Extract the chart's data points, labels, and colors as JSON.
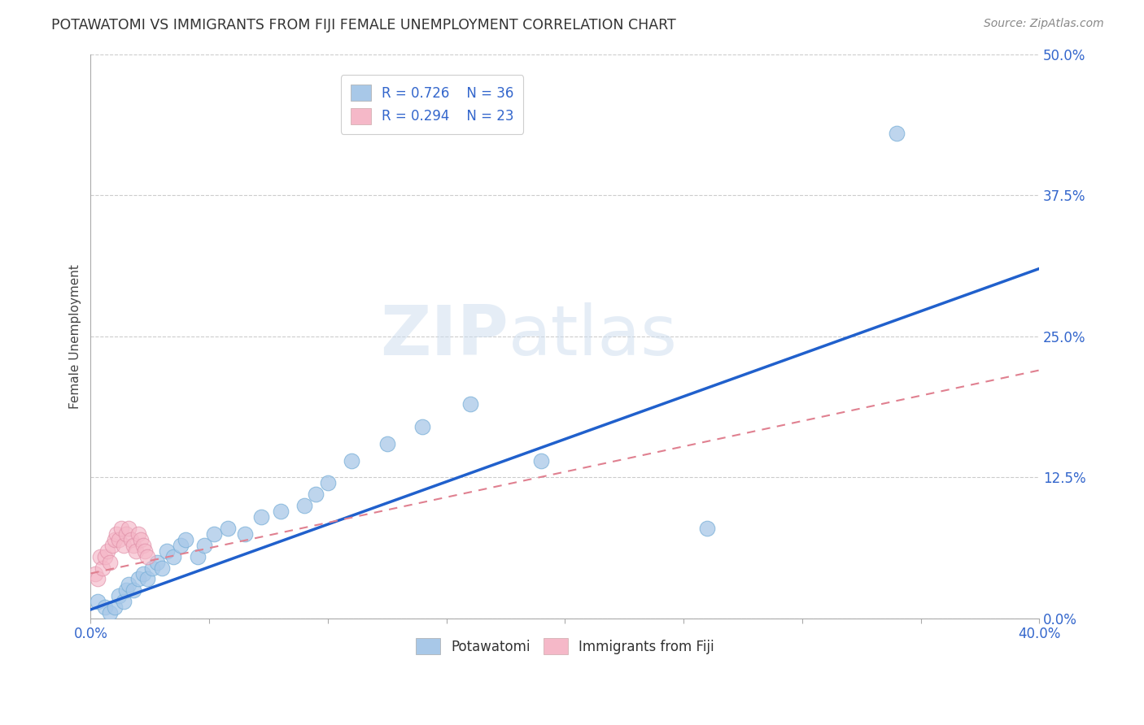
{
  "title": "POTAWATOMI VS IMMIGRANTS FROM FIJI FEMALE UNEMPLOYMENT CORRELATION CHART",
  "source": "Source: ZipAtlas.com",
  "ylabel": "Female Unemployment",
  "xlim": [
    0.0,
    0.4
  ],
  "ylim": [
    0.0,
    0.5
  ],
  "ytick_vals": [
    0.0,
    0.125,
    0.25,
    0.375,
    0.5
  ],
  "xtick_vals": [
    0.0,
    0.05,
    0.1,
    0.15,
    0.2,
    0.25,
    0.3,
    0.35,
    0.4
  ],
  "legend_r1": "0.726",
  "legend_n1": "36",
  "legend_r2": "0.294",
  "legend_n2": "23",
  "blue_color": "#a8c8e8",
  "pink_color": "#f5b8c8",
  "line_blue": "#2060cc",
  "line_pink": "#e08090",
  "text_blue": "#3366cc",
  "watermark_zip": "ZIP",
  "watermark_atlas": "atlas",
  "blue_x": [
    0.003,
    0.006,
    0.008,
    0.01,
    0.012,
    0.014,
    0.015,
    0.016,
    0.018,
    0.02,
    0.022,
    0.024,
    0.026,
    0.028,
    0.03,
    0.032,
    0.035,
    0.038,
    0.04,
    0.045,
    0.048,
    0.052,
    0.058,
    0.065,
    0.072,
    0.08,
    0.09,
    0.095,
    0.1,
    0.11,
    0.125,
    0.14,
    0.16,
    0.19,
    0.26,
    0.34
  ],
  "blue_y": [
    0.015,
    0.01,
    0.005,
    0.01,
    0.02,
    0.015,
    0.025,
    0.03,
    0.025,
    0.035,
    0.04,
    0.035,
    0.045,
    0.05,
    0.045,
    0.06,
    0.055,
    0.065,
    0.07,
    0.055,
    0.065,
    0.075,
    0.08,
    0.075,
    0.09,
    0.095,
    0.1,
    0.11,
    0.12,
    0.14,
    0.155,
    0.17,
    0.19,
    0.14,
    0.08,
    0.43
  ],
  "pink_x": [
    0.002,
    0.003,
    0.004,
    0.005,
    0.006,
    0.007,
    0.008,
    0.009,
    0.01,
    0.011,
    0.012,
    0.013,
    0.014,
    0.015,
    0.016,
    0.017,
    0.018,
    0.019,
    0.02,
    0.021,
    0.022,
    0.023,
    0.024
  ],
  "pink_y": [
    0.04,
    0.035,
    0.055,
    0.045,
    0.055,
    0.06,
    0.05,
    0.065,
    0.07,
    0.075,
    0.07,
    0.08,
    0.065,
    0.075,
    0.08,
    0.07,
    0.065,
    0.06,
    0.075,
    0.07,
    0.065,
    0.06,
    0.055
  ],
  "blue_trend_x": [
    0.0,
    0.4
  ],
  "blue_trend_y": [
    0.008,
    0.31
  ],
  "pink_trend_x": [
    0.0,
    0.4
  ],
  "pink_trend_y": [
    0.04,
    0.22
  ],
  "background_color": "#ffffff",
  "grid_color": "#cccccc"
}
